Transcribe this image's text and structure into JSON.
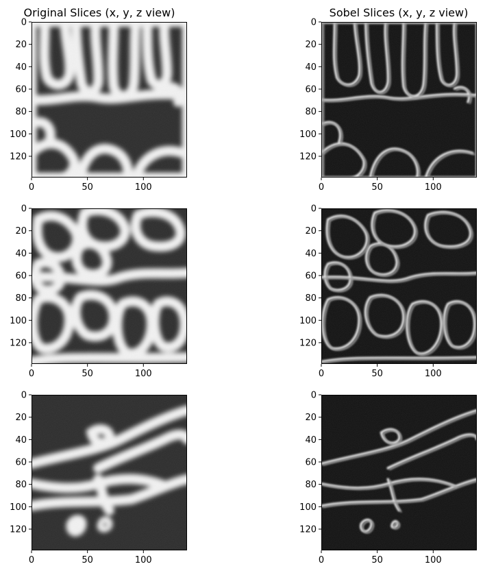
{
  "figure": {
    "columns": [
      {
        "title": "Original Slices (x, y, z view)"
      },
      {
        "title": "Sobel Slices (x, y, z view)"
      }
    ],
    "panels": [
      {
        "id": "orig-x",
        "row": 0,
        "col": 0,
        "kind": "original",
        "view": "x"
      },
      {
        "id": "sobel-x",
        "row": 0,
        "col": 1,
        "kind": "sobel",
        "view": "x"
      },
      {
        "id": "orig-y",
        "row": 1,
        "col": 0,
        "kind": "original",
        "view": "y"
      },
      {
        "id": "sobel-y",
        "row": 1,
        "col": 1,
        "kind": "sobel",
        "view": "y"
      },
      {
        "id": "orig-z",
        "row": 2,
        "col": 0,
        "kind": "original",
        "view": "z"
      },
      {
        "id": "sobel-z",
        "row": 2,
        "col": 1,
        "kind": "sobel",
        "view": "z"
      }
    ],
    "axes": {
      "xlim": [
        0,
        139
      ],
      "ylim": [
        139,
        0
      ],
      "xticks": [
        0,
        50,
        100
      ],
      "yticks": [
        0,
        20,
        40,
        60,
        80,
        100,
        120
      ]
    },
    "colormap": {
      "low": "#000000",
      "high": "#ffffff"
    }
  }
}
